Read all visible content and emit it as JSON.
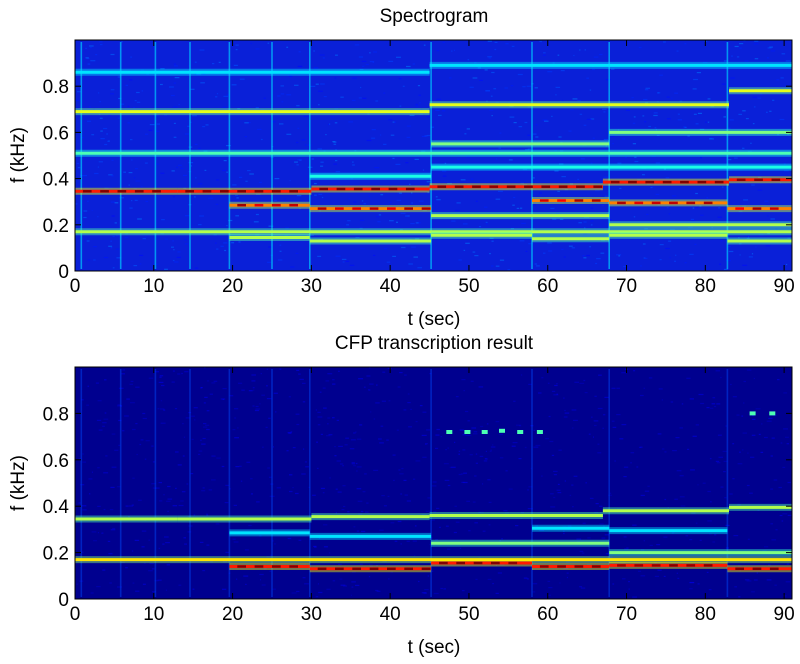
{
  "chart_data": [
    {
      "type": "heatmap",
      "title": "Spectrogram",
      "xlabel": "t (sec)",
      "ylabel": "f (kHz)",
      "xlim": [
        0,
        91
      ],
      "ylim": [
        0,
        1.0
      ],
      "xticks": [
        0,
        10,
        20,
        30,
        40,
        50,
        60,
        70,
        80,
        90
      ],
      "xtick_labels": [
        "0",
        "10",
        "20",
        "30",
        "40",
        "50",
        "60",
        "70",
        "80",
        "90"
      ],
      "yticks": [
        0,
        0.2,
        0.4,
        0.6,
        0.8
      ],
      "ytick_labels": [
        "0",
        "0.2",
        "0.4",
        "0.6",
        "0.8"
      ],
      "colormap": "jet",
      "background_color": "#0a20d8",
      "note_onsets": [
        0.8,
        5.8,
        10.2,
        14.6,
        19.6,
        25.0,
        29.8,
        45.2,
        58.0,
        67.8,
        82.8
      ],
      "partials": [
        {
          "segments": [
            [
              0,
              91,
              0.17
            ]
          ],
          "intensity": 0.55
        },
        {
          "segments": [
            [
              0,
              13,
              0.345
            ],
            [
              13,
              30,
              0.345
            ],
            [
              30,
              45,
              0.355
            ],
            [
              45,
              67,
              0.365
            ],
            [
              67,
              83,
              0.385
            ],
            [
              83,
              91,
              0.395
            ]
          ],
          "intensity": 0.85
        },
        {
          "segments": [
            [
              0,
              91,
              0.51
            ]
          ],
          "intensity": 0.45
        },
        {
          "segments": [
            [
              0,
              45,
              0.69
            ],
            [
              45,
              83,
              0.72
            ],
            [
              83,
              91,
              0.78
            ]
          ],
          "intensity": 0.6
        },
        {
          "segments": [
            [
              0,
              45,
              0.86
            ],
            [
              45,
              91,
              0.89
            ]
          ],
          "intensity": 0.35
        },
        {
          "segments": [
            [
              19.6,
              29.8,
              0.285
            ],
            [
              29.8,
              45.2,
              0.27
            ],
            [
              58,
              67.8,
              0.305
            ],
            [
              67.8,
              82.8,
              0.295
            ],
            [
              82.8,
              91,
              0.27
            ]
          ],
          "intensity": 0.75
        },
        {
          "segments": [
            [
              19.6,
              29.8,
              0.145
            ],
            [
              29.8,
              45.2,
              0.13
            ],
            [
              45.2,
              58,
              0.155
            ],
            [
              58,
              67.8,
              0.14
            ],
            [
              67.8,
              82.8,
              0.155
            ],
            [
              82.8,
              91,
              0.13
            ]
          ],
          "intensity": 0.55
        },
        {
          "segments": [
            [
              45.2,
              67.8,
              0.24
            ],
            [
              67.8,
              91,
              0.2
            ]
          ],
          "intensity": 0.55
        },
        {
          "segments": [
            [
              45.2,
              67.8,
              0.55
            ],
            [
              67.8,
              91,
              0.6
            ]
          ],
          "intensity": 0.5
        },
        {
          "segments": [
            [
              29.8,
              45.2,
              0.41
            ],
            [
              45.2,
              91,
              0.45
            ]
          ],
          "intensity": 0.4
        }
      ]
    },
    {
      "type": "heatmap",
      "title": "CFP transcription result",
      "xlabel": "t (sec)",
      "ylabel": "f (kHz)",
      "xlim": [
        0,
        91
      ],
      "ylim": [
        0,
        1.0
      ],
      "xticks": [
        0,
        10,
        20,
        30,
        40,
        50,
        60,
        70,
        80,
        90
      ],
      "xtick_labels": [
        "0",
        "10",
        "20",
        "30",
        "40",
        "50",
        "60",
        "70",
        "80",
        "90"
      ],
      "yticks": [
        0,
        0.2,
        0.4,
        0.6,
        0.8
      ],
      "ytick_labels": [
        "0",
        "0.2",
        "0.4",
        "0.6",
        "0.8"
      ],
      "colormap": "jet",
      "background_color": "#00008f",
      "note_onsets": [
        0.8,
        5.8,
        10.2,
        14.6,
        19.6,
        25.0,
        29.8,
        45.2,
        58.0,
        67.8,
        82.8
      ],
      "partials": [
        {
          "segments": [
            [
              0,
              91,
              0.17
            ]
          ],
          "intensity": 0.65
        },
        {
          "segments": [
            [
              0,
              13,
              0.345
            ],
            [
              13,
              30,
              0.345
            ],
            [
              30,
              45,
              0.355
            ],
            [
              45,
              67,
              0.36
            ],
            [
              67,
              83,
              0.38
            ],
            [
              83,
              91,
              0.395
            ]
          ],
          "intensity": 0.55
        },
        {
          "segments": [
            [
              19.6,
              29.8,
              0.14
            ],
            [
              29.8,
              45.2,
              0.13
            ],
            [
              45.2,
              58,
              0.155
            ],
            [
              58,
              67.8,
              0.14
            ],
            [
              67.8,
              82.8,
              0.145
            ],
            [
              82.8,
              91,
              0.13
            ]
          ],
          "intensity": 0.85
        },
        {
          "segments": [
            [
              45.2,
              67.8,
              0.24
            ],
            [
              67.8,
              91,
              0.2
            ]
          ],
          "intensity": 0.5
        },
        {
          "segments": [
            [
              19.6,
              29.8,
              0.285
            ],
            [
              29.8,
              45.2,
              0.27
            ],
            [
              58,
              67.8,
              0.305
            ],
            [
              67.8,
              82.8,
              0.295
            ]
          ],
          "intensity": 0.35
        }
      ],
      "spots": [
        [
          47.5,
          0.72
        ],
        [
          49.8,
          0.72
        ],
        [
          52.0,
          0.72
        ],
        [
          54.2,
          0.725
        ],
        [
          56.5,
          0.72
        ],
        [
          59.0,
          0.72
        ],
        [
          86.0,
          0.8
        ],
        [
          88.5,
          0.8
        ]
      ]
    }
  ]
}
